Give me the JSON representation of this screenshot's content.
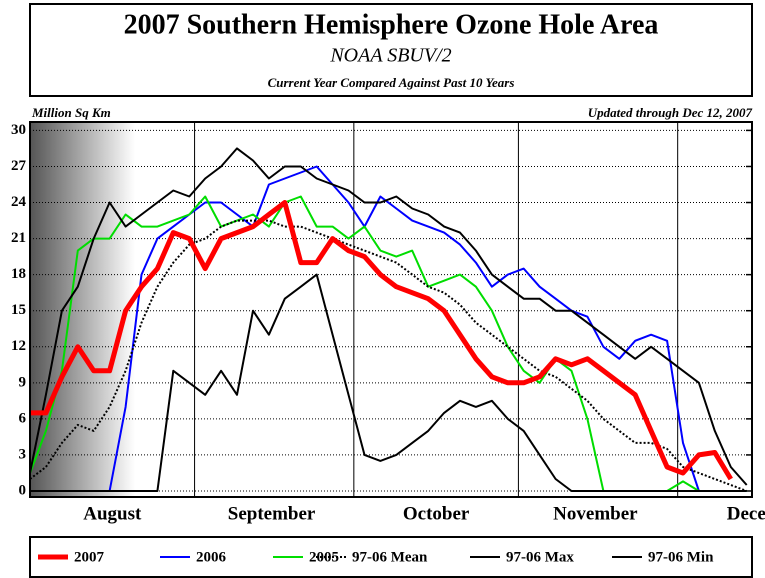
{
  "chart_data": {
    "type": "line",
    "title": "2007 Southern Hemisphere Ozone Hole Area",
    "subtitle": "NOAA SBUV/2",
    "subtitle2": "Current Year Compared Against Past 10 Years",
    "ylabel": "Million Sq Km",
    "note": "Updated through Dec 12, 2007",
    "xlim": [
      0,
      136
    ],
    "ylim": [
      -0.5,
      30.7
    ],
    "yticks": [
      0,
      3,
      6,
      9,
      12,
      15,
      18,
      21,
      24,
      27,
      30
    ],
    "xticks": [
      {
        "value": 15.5,
        "label": "August"
      },
      {
        "value": 45.5,
        "label": "September"
      },
      {
        "value": 76.5,
        "label": "October"
      },
      {
        "value": 106.5,
        "label": "November"
      },
      {
        "value": 139,
        "label": "December"
      }
    ],
    "xgrid": [
      31,
      61,
      92,
      122
    ],
    "grid": true,
    "x": [
      0,
      3,
      6,
      9,
      12,
      15,
      18,
      21,
      24,
      27,
      30,
      33,
      36,
      39,
      42,
      45,
      48,
      51,
      54,
      57,
      60,
      63,
      66,
      69,
      72,
      75,
      78,
      81,
      84,
      87,
      90,
      93,
      96,
      99,
      102,
      105,
      108,
      111,
      114,
      117,
      120,
      123,
      126,
      129,
      132,
      135
    ],
    "series": [
      {
        "name": "2007",
        "color": "#ff0000",
        "values": [
          6.5,
          6.5,
          9.5,
          12,
          10,
          10,
          15,
          17,
          18.5,
          21.5,
          21,
          18.5,
          21,
          21.5,
          22,
          23,
          24,
          19,
          19,
          21,
          20,
          19.5,
          18,
          17,
          16.5,
          16,
          15,
          13,
          11,
          9.5,
          9,
          9,
          9.5,
          11,
          10.5,
          11,
          10,
          9,
          8,
          5,
          2,
          1.5,
          3,
          3.2,
          1,
          null
        ]
      },
      {
        "name": "2006",
        "color": "#0000ff",
        "values": [
          0,
          0,
          0,
          0,
          0,
          0,
          7,
          18,
          21,
          22,
          23,
          24,
          24,
          23,
          22,
          25.5,
          26,
          26.5,
          27,
          25.5,
          24,
          22,
          24.5,
          23.5,
          22.5,
          22,
          21.5,
          20.5,
          19,
          17,
          18,
          18.5,
          17,
          16,
          15,
          14.5,
          12,
          11,
          12.5,
          13,
          12.5,
          4,
          0,
          0,
          0,
          0
        ]
      },
      {
        "name": "2005",
        "color": "#00dd00",
        "values": [
          1.5,
          5,
          10,
          20,
          21,
          21,
          23,
          22,
          22,
          22.5,
          23,
          24.5,
          22,
          22.5,
          23,
          22,
          24,
          24.5,
          22,
          22,
          21,
          22,
          20,
          19.5,
          20,
          17,
          17.5,
          18,
          17,
          15,
          12,
          10,
          9,
          11,
          10,
          6,
          0,
          0,
          0,
          0,
          0,
          0.8,
          0,
          0,
          0,
          0
        ]
      },
      {
        "name": "97-06 Mean",
        "color": "#000000",
        "dash": true,
        "values": [
          1,
          2,
          4,
          5.5,
          5,
          7,
          10,
          14,
          17,
          19,
          20.5,
          21,
          22,
          22.5,
          22.5,
          22.5,
          22,
          22,
          21.5,
          21,
          20.5,
          20,
          19.5,
          19,
          18,
          17,
          16.5,
          15.5,
          14,
          13,
          12,
          11,
          10,
          9.5,
          8.5,
          7.5,
          6,
          5,
          4,
          4,
          3.5,
          2,
          1.5,
          1,
          0.5,
          0
        ]
      },
      {
        "name": "97-06 Max",
        "color": "#000000",
        "values": [
          1.5,
          8,
          15,
          17,
          21,
          24,
          22,
          23,
          24,
          25,
          24.5,
          26,
          27,
          28.5,
          27.5,
          26,
          27,
          27,
          26,
          25.5,
          25,
          24,
          24,
          24.5,
          23.5,
          23,
          22,
          21.5,
          20,
          18,
          17,
          16,
          16,
          15,
          15,
          14,
          13,
          12,
          11,
          12,
          11,
          10,
          9,
          5,
          2,
          0.5
        ]
      },
      {
        "name": "97-06 Min",
        "color": "#000000",
        "values": [
          0,
          0,
          0,
          0,
          0,
          0,
          0,
          0,
          0,
          10,
          9,
          8,
          10,
          8,
          15,
          13,
          16,
          17,
          18,
          13,
          8,
          3,
          2.5,
          3,
          4,
          5,
          6.5,
          7.5,
          7,
          7.5,
          6,
          5,
          3,
          1,
          0,
          0,
          0,
          0,
          0,
          0,
          0,
          0,
          0,
          0,
          0,
          0
        ]
      }
    ]
  }
}
